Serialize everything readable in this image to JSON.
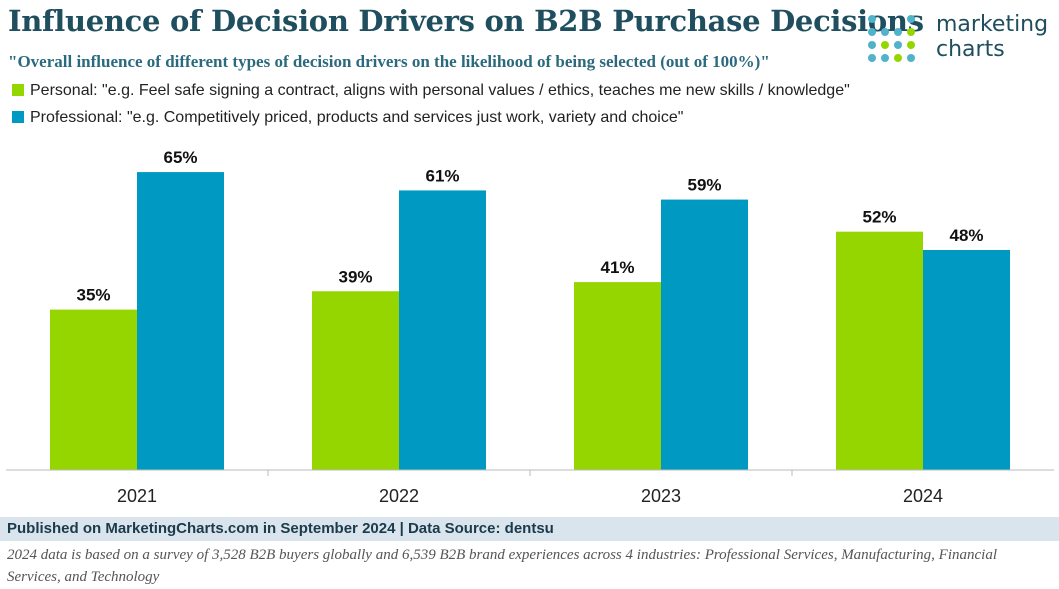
{
  "title": "Influence of Decision Drivers on B2B Purchase Decisions",
  "subtitle": "\"Overall influence of different types of decision drivers on the likelihood of being selected (out of 100%)\"",
  "logo": {
    "line1": "marketing",
    "line2": "charts"
  },
  "colors": {
    "personal": "#96d600",
    "professional": "#0099c2",
    "title": "#1f4e5f",
    "footer_bg": "#d9e4ec"
  },
  "chart_data": {
    "type": "bar",
    "categories": [
      "2021",
      "2022",
      "2023",
      "2024"
    ],
    "series": [
      {
        "name": "Personal: \"e.g. Feel safe signing a contract, aligns with personal values / ethics, teaches me new skills / knowledge\"",
        "values": [
          35,
          39,
          41,
          52
        ],
        "labels": [
          "35%",
          "39%",
          "41%",
          "52%"
        ]
      },
      {
        "name": "Professional: \"e.g. Competitively priced, products and services just work, variety and choice\"",
        "values": [
          65,
          61,
          59,
          48
        ],
        "labels": [
          "65%",
          "61%",
          "59%",
          "48%"
        ]
      }
    ],
    "ylim": [
      0,
      72
    ],
    "legend": "top-left",
    "grid": false
  },
  "footer": {
    "published": "Published on MarketingCharts.com in September 2024 | Data Source: dentsu",
    "note": "2024 data is based on a survey of 3,528 B2B buyers globally and 6,539 B2B brand experiences across 4 industries: Professional Services, Manufacturing, Financial Services, and Technology"
  }
}
